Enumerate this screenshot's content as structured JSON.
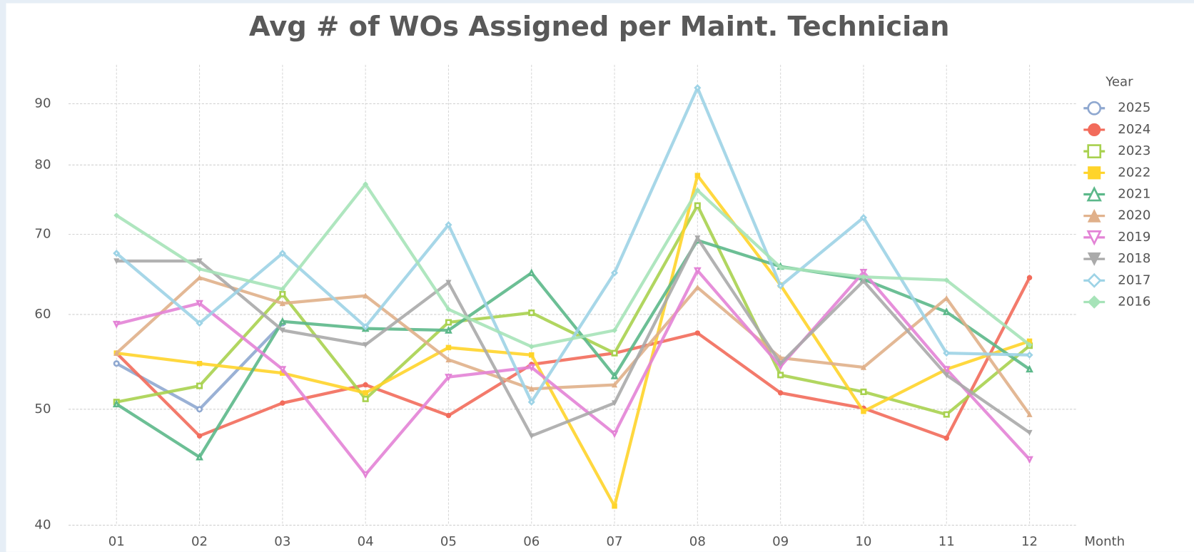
{
  "chart_data": {
    "type": "line",
    "title": "Avg # of WOs Assigned per Maint. Technician",
    "x_label": "Month",
    "legend_title": "Year",
    "log_scale": true,
    "grid": true,
    "legend_position": "right",
    "categories": [
      "01",
      "02",
      "03",
      "04",
      "05",
      "06",
      "07",
      "08",
      "09",
      "10",
      "11",
      "12"
    ],
    "ylim": [
      40,
      97
    ],
    "yticks": [
      40,
      50,
      60,
      70,
      80,
      90
    ],
    "series": [
      {
        "name": "2025",
        "color": "#8fa8d0",
        "marker": "circle-open",
        "values": [
          54.6,
          50,
          59,
          null,
          null,
          null,
          null,
          null,
          null,
          null,
          null,
          null
        ]
      },
      {
        "name": "2024",
        "color": "#f26b5b",
        "marker": "circle",
        "values": [
          55.7,
          47.5,
          50.6,
          52.4,
          49.4,
          54.5,
          55.7,
          57.9,
          51.6,
          50.1,
          47.3,
          64.4
        ]
      },
      {
        "name": "2023",
        "color": "#a8d14f",
        "marker": "square-open",
        "values": [
          50.7,
          52.3,
          62.4,
          51,
          59.1,
          60.2,
          55.7,
          74,
          53.4,
          51.7,
          49.5,
          56.5
        ]
      },
      {
        "name": "2022",
        "color": "#ffd42a",
        "marker": "square",
        "values": [
          55.7,
          54.6,
          53.6,
          51.6,
          56.3,
          55.5,
          41.5,
          78.4,
          63.5,
          49.8,
          54,
          57
        ]
      },
      {
        "name": "2021",
        "color": "#5cb88a",
        "marker": "triangle-open",
        "values": [
          50.5,
          45.6,
          59.2,
          58.4,
          58.2,
          65,
          53.3,
          69.2,
          65.8,
          64.2,
          60.3,
          54
        ]
      },
      {
        "name": "2020",
        "color": "#e0b08a",
        "marker": "triangle",
        "values": [
          55.7,
          64.4,
          61.3,
          62.2,
          55,
          52,
          52.4,
          63.2,
          55.2,
          54.2,
          61.9,
          49.5
        ]
      },
      {
        "name": "2019",
        "color": "#e383d6",
        "marker": "triangle-down-open",
        "values": [
          58.9,
          61.3,
          54,
          44.1,
          53.2,
          54.2,
          47.7,
          65.3,
          54.3,
          65.1,
          54,
          45.4
        ]
      },
      {
        "name": "2018",
        "color": "#aaaaaa",
        "marker": "triangle-down",
        "values": [
          66.5,
          66.5,
          58.2,
          56.6,
          63.8,
          47.5,
          50.6,
          69.5,
          54.6,
          64,
          53.4,
          47.8
        ]
      },
      {
        "name": "2017",
        "color": "#9dd3e6",
        "marker": "diamond-open",
        "values": [
          67.5,
          59,
          67.5,
          58.6,
          71.3,
          50.7,
          65,
          92.8,
          63.4,
          72.3,
          55.7,
          55.5
        ]
      },
      {
        "name": "2016",
        "color": "#a6e3b8",
        "marker": "diamond",
        "values": [
          72.6,
          65.5,
          63,
          77.1,
          60.6,
          56.4,
          58.2,
          76.2,
          65.7,
          64.5,
          64.1,
          56.6
        ]
      }
    ]
  }
}
